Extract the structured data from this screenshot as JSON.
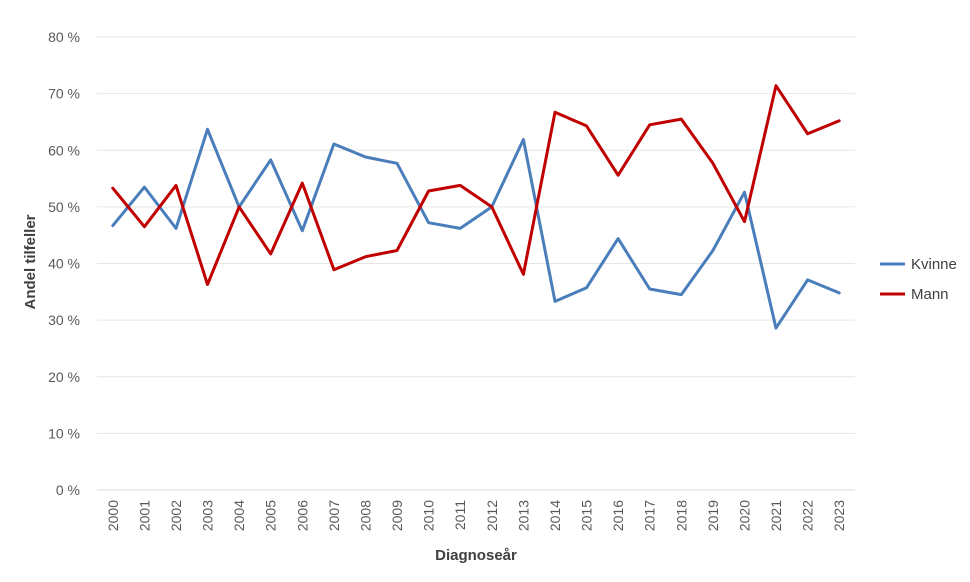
{
  "chart_data": {
    "type": "line",
    "categories": [
      "2000",
      "2001",
      "2002",
      "2003",
      "2004",
      "2005",
      "2006",
      "2007",
      "2008",
      "2009",
      "2010",
      "2011",
      "2012",
      "2013",
      "2014",
      "2015",
      "2016",
      "2017",
      "2018",
      "2019",
      "2020",
      "2021",
      "2022",
      "2023"
    ],
    "series": [
      {
        "name": "Kvinne",
        "color": "#4a7ebb",
        "values": [
          46.7,
          53.5,
          46.2,
          63.7,
          50.0,
          58.3,
          45.8,
          61.1,
          58.8,
          57.7,
          47.2,
          46.2,
          50.0,
          61.9,
          33.3,
          35.7,
          44.4,
          35.5,
          34.5,
          42.3,
          52.6,
          28.6,
          37.1,
          34.8
        ]
      },
      {
        "name": "Mann",
        "color": "#c00000",
        "values": [
          53.3,
          46.5,
          53.8,
          36.3,
          50.0,
          41.7,
          54.2,
          38.9,
          41.2,
          42.3,
          52.8,
          53.8,
          50.0,
          38.1,
          66.7,
          64.3,
          55.6,
          64.5,
          65.5,
          57.7,
          47.4,
          71.4,
          62.9,
          65.2
        ]
      }
    ],
    "xlabel": "Diagnoseår",
    "ylabel": "Andel tilfeller",
    "y_ticks": [
      "0 %",
      "10 %",
      "20 %",
      "30 %",
      "40 %",
      "50 %",
      "60 %",
      "70 %",
      "80 %"
    ],
    "ylim": [
      0,
      80
    ],
    "y_step": 10,
    "grid": true,
    "legend_position": "right"
  }
}
